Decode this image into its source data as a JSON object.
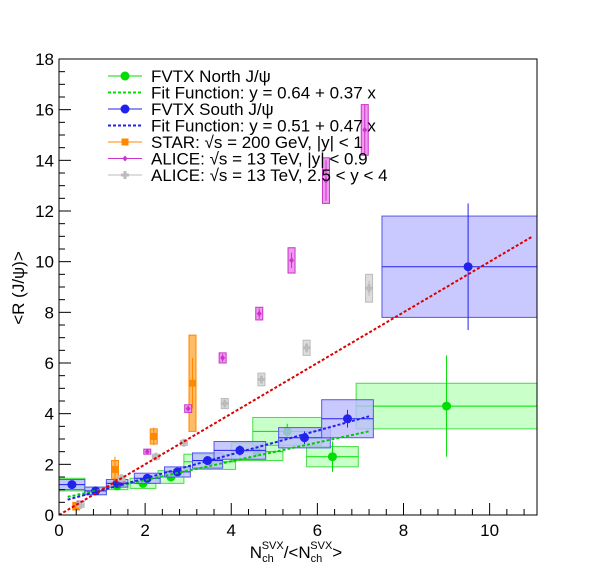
{
  "chart_data": {
    "type": "scatter",
    "title": "",
    "xlabel": {
      "main": "N",
      "sub": "ch",
      "sup": "SVX",
      "mid": "/<N",
      "sub2": "ch",
      "sup2": "SVX",
      "end": ">"
    },
    "ylabel": "<R (J/ψ)>",
    "xlim": [
      0,
      11.1
    ],
    "ylim": [
      0,
      18
    ],
    "x_ticks": [
      0,
      2,
      4,
      6,
      8,
      10
    ],
    "y_ticks": [
      0,
      2,
      4,
      6,
      8,
      10,
      12,
      14,
      16,
      18
    ],
    "legend_position": "top-left",
    "legend": [
      {
        "label": "FVTX North J/ψ",
        "color": "#00dd00",
        "marker": "circle"
      },
      {
        "label": "Fit Function: y = 0.64 + 0.37 x",
        "color": "#00dd00",
        "marker": "dashed-line"
      },
      {
        "label": "FVTX South J/ψ",
        "color": "#2222ee",
        "marker": "circle"
      },
      {
        "label": "Fit Function: y = 0.51 + 0.47 x",
        "color": "#2222ee",
        "marker": "dashed-line"
      },
      {
        "label": "STAR: √s = 200 GeV, |y| < 1",
        "color": "#ff8800",
        "marker": "square"
      },
      {
        "label": "ALICE: √s = 13 TeV, |y| < 0.9",
        "color": "#cc33cc",
        "marker": "diamond"
      },
      {
        "label": "ALICE: √s = 13 TeV, 2.5 < y < 4",
        "color": "#bbbbbb",
        "marker": "cross"
      }
    ],
    "fits": [
      {
        "name": "Fit North",
        "intercept": 0.64,
        "slope": 0.37,
        "x_range": [
          0.2,
          7.2
        ],
        "color": "#00cc00"
      },
      {
        "name": "Fit South",
        "intercept": 0.51,
        "slope": 0.47,
        "x_range": [
          0.2,
          7.2
        ],
        "color": "#2222ee"
      },
      {
        "name": "Global fit",
        "intercept": 0.0,
        "slope": 1.0,
        "x_range": [
          0.0,
          11.0
        ],
        "color": "#dd0000"
      }
    ],
    "series": [
      {
        "name": "FVTX North J/ψ",
        "color": "#00dd00",
        "fill": "#bbffbb",
        "stroke": "#44dd44",
        "style": "box",
        "points": [
          {
            "x": 0.3,
            "y": 1.2,
            "xerr": 0.3,
            "yerr": 0.1,
            "sys": 0.25
          },
          {
            "x": 0.85,
            "y": 0.95,
            "xerr": 0.25,
            "yerr": 0.1,
            "sys": 0.15
          },
          {
            "x": 1.35,
            "y": 1.15,
            "xerr": 0.25,
            "yerr": 0.1,
            "sys": 0.15
          },
          {
            "x": 1.95,
            "y": 1.25,
            "xerr": 0.3,
            "yerr": 0.1,
            "sys": 0.2
          },
          {
            "x": 2.6,
            "y": 1.5,
            "xerr": 0.3,
            "yerr": 0.1,
            "sys": 0.25
          },
          {
            "x": 3.5,
            "y": 2.1,
            "xerr": 0.6,
            "yerr": 0.15,
            "sys": 0.3
          },
          {
            "x": 4.6,
            "y": 2.5,
            "xerr": 0.6,
            "yerr": 0.2,
            "sys": 0.35
          },
          {
            "x": 5.3,
            "y": 3.3,
            "xerr": 0.8,
            "yerr": 0.3,
            "sys": 0.55
          },
          {
            "x": 6.35,
            "y": 2.3,
            "xerr": 0.6,
            "yerr": 0.6,
            "sys": 0.4
          },
          {
            "x": 9.0,
            "y": 4.3,
            "xerr": 2.1,
            "yerr": 2.0,
            "sys": 0.9
          }
        ]
      },
      {
        "name": "FVTX South J/ψ",
        "color": "#2222ee",
        "fill": "#bbbbff",
        "stroke": "#5555ee",
        "style": "box",
        "points": [
          {
            "x": 0.3,
            "y": 1.2,
            "xerr": 0.3,
            "yerr": 0.1,
            "sys": 0.2
          },
          {
            "x": 0.85,
            "y": 0.95,
            "xerr": 0.25,
            "yerr": 0.1,
            "sys": 0.15
          },
          {
            "x": 1.35,
            "y": 1.25,
            "xerr": 0.25,
            "yerr": 0.1,
            "sys": 0.15
          },
          {
            "x": 2.05,
            "y": 1.45,
            "xerr": 0.3,
            "yerr": 0.1,
            "sys": 0.2
          },
          {
            "x": 2.75,
            "y": 1.7,
            "xerr": 0.3,
            "yerr": 0.1,
            "sys": 0.2
          },
          {
            "x": 3.45,
            "y": 2.15,
            "xerr": 0.35,
            "yerr": 0.15,
            "sys": 0.3
          },
          {
            "x": 4.2,
            "y": 2.55,
            "xerr": 0.6,
            "yerr": 0.2,
            "sys": 0.35
          },
          {
            "x": 5.7,
            "y": 3.05,
            "xerr": 0.6,
            "yerr": 0.25,
            "sys": 0.4
          },
          {
            "x": 6.7,
            "y": 3.8,
            "xerr": 0.6,
            "yerr": 0.35,
            "sys": 0.75
          },
          {
            "x": 9.5,
            "y": 9.8,
            "xerr": 2.0,
            "yerr": 2.5,
            "sys": 2.0
          }
        ]
      },
      {
        "name": "STAR: √s = 200 GeV, |y| < 1",
        "color": "#ff8800",
        "fill": "#ffbb66",
        "stroke": "#ff8800",
        "style": "square",
        "points": [
          {
            "x": 0.4,
            "y": 0.35,
            "yerr": 0.1,
            "sys": 0.15
          },
          {
            "x": 1.3,
            "y": 1.8,
            "yerr": 0.5,
            "sys": 0.35
          },
          {
            "x": 2.2,
            "y": 3.1,
            "yerr": 0.35,
            "sys": 0.3
          },
          {
            "x": 3.1,
            "y": 5.2,
            "yerr": 1.0,
            "sys": 1.9
          }
        ]
      },
      {
        "name": "ALICE: √s = 13 TeV, |y| < 0.9",
        "color": "#cc33cc",
        "fill": "#ee99ee",
        "stroke": "#cc33cc",
        "style": "diamond",
        "points": [
          {
            "x": 0.5,
            "y": 0.45,
            "yerr": 0.05,
            "sys": 0.1
          },
          {
            "x": 1.45,
            "y": 1.4,
            "yerr": 0.05,
            "sys": 0.1
          },
          {
            "x": 2.05,
            "y": 2.5,
            "yerr": 0.1,
            "sys": 0.1
          },
          {
            "x": 3.0,
            "y": 4.2,
            "yerr": 0.1,
            "sys": 0.15
          },
          {
            "x": 3.8,
            "y": 6.2,
            "yerr": 0.15,
            "sys": 0.2
          },
          {
            "x": 4.65,
            "y": 7.95,
            "yerr": 0.2,
            "sys": 0.25
          },
          {
            "x": 5.4,
            "y": 10.05,
            "yerr": 0.3,
            "sys": 0.5
          },
          {
            "x": 6.2,
            "y": 13.2,
            "yerr": 0.8,
            "sys": 0.9
          },
          {
            "x": 7.1,
            "y": 15.2,
            "yerr": 1.0,
            "sys": 1.0
          }
        ]
      },
      {
        "name": "ALICE: √s = 13 TeV, 2.5 < y < 4",
        "color": "#bbbbbb",
        "fill": "#dddddd",
        "stroke": "#bbbbbb",
        "style": "cross",
        "points": [
          {
            "x": 0.5,
            "y": 0.4,
            "yerr": 0.05,
            "sys": 0.1
          },
          {
            "x": 1.45,
            "y": 1.45,
            "yerr": 0.05,
            "sys": 0.1
          },
          {
            "x": 2.25,
            "y": 2.3,
            "yerr": 0.1,
            "sys": 0.1
          },
          {
            "x": 2.9,
            "y": 2.85,
            "yerr": 0.1,
            "sys": 0.1
          },
          {
            "x": 3.85,
            "y": 4.4,
            "yerr": 0.1,
            "sys": 0.2
          },
          {
            "x": 4.7,
            "y": 5.35,
            "yerr": 0.15,
            "sys": 0.25
          },
          {
            "x": 5.75,
            "y": 6.6,
            "yerr": 0.2,
            "sys": 0.3
          },
          {
            "x": 7.2,
            "y": 8.95,
            "yerr": 0.3,
            "sys": 0.55
          }
        ]
      }
    ]
  }
}
